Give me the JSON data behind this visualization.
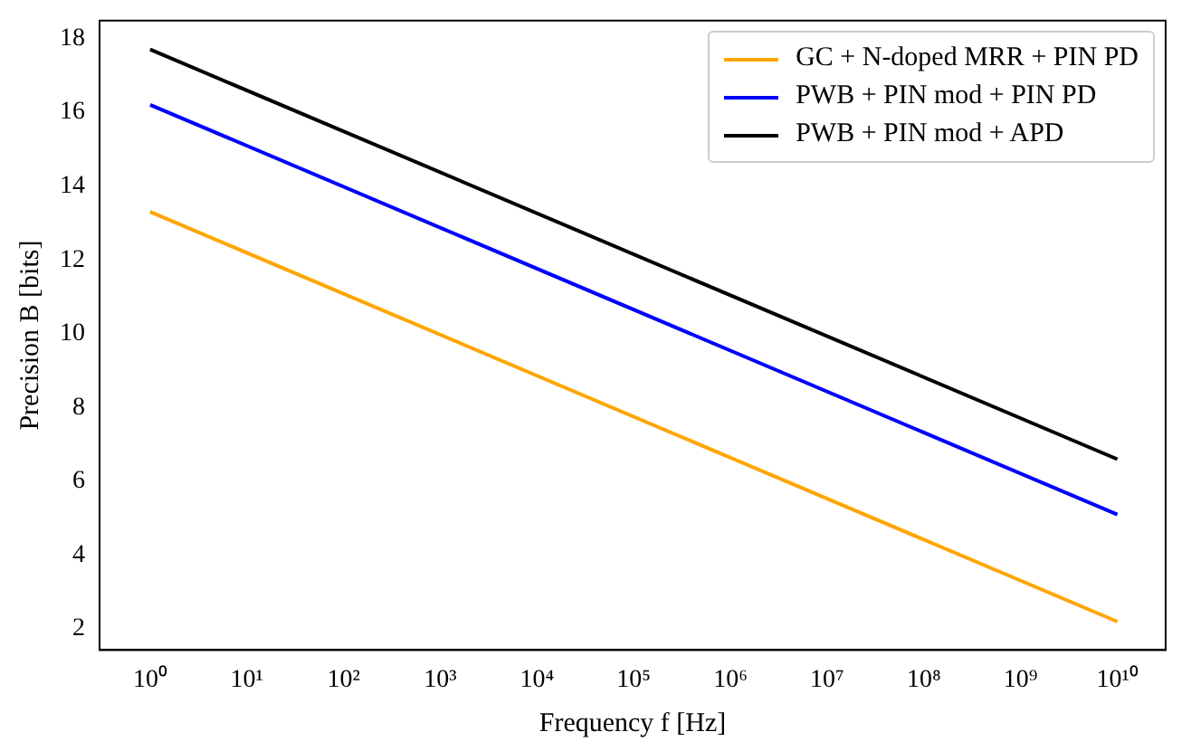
{
  "chart_data": {
    "type": "line",
    "xlabel": "Frequency f [Hz]",
    "ylabel": "Precision B [bits]",
    "x": [
      1,
      10000000000
    ],
    "series": [
      {
        "name": "GC + N-doped MRR + PIN PD",
        "color": "#ffa500",
        "values": [
          13.3,
          2.2
        ]
      },
      {
        "name": "PWB + PIN mod + PIN PD",
        "color": "#0000ff",
        "values": [
          16.2,
          5.1
        ]
      },
      {
        "name": "PWB + PIN mod + APD",
        "color": "#000000",
        "values": [
          17.7,
          6.6
        ]
      }
    ],
    "log": "x",
    "xlim": [
      0.316,
      31600000000
    ],
    "xticks": [
      {
        "value": 1,
        "label": "10⁰"
      },
      {
        "value": 10,
        "label": "10¹"
      },
      {
        "value": 100,
        "label": "10²"
      },
      {
        "value": 1000,
        "label": "10³"
      },
      {
        "value": 10000,
        "label": "10⁴"
      },
      {
        "value": 100000,
        "label": "10⁵"
      },
      {
        "value": 1000000,
        "label": "10⁶"
      },
      {
        "value": 10000000,
        "label": "10⁷"
      },
      {
        "value": 100000000,
        "label": "10⁸"
      },
      {
        "value": 1000000000,
        "label": "10⁹"
      },
      {
        "value": 10000000000,
        "label": "10¹⁰"
      }
    ],
    "ylim": [
      1.43,
      18.48
    ],
    "yticks": [
      2,
      4,
      6,
      8,
      10,
      12,
      14,
      16,
      18
    ],
    "grid": false,
    "legend": "top right",
    "marker": "none",
    "line_style": "solid"
  }
}
